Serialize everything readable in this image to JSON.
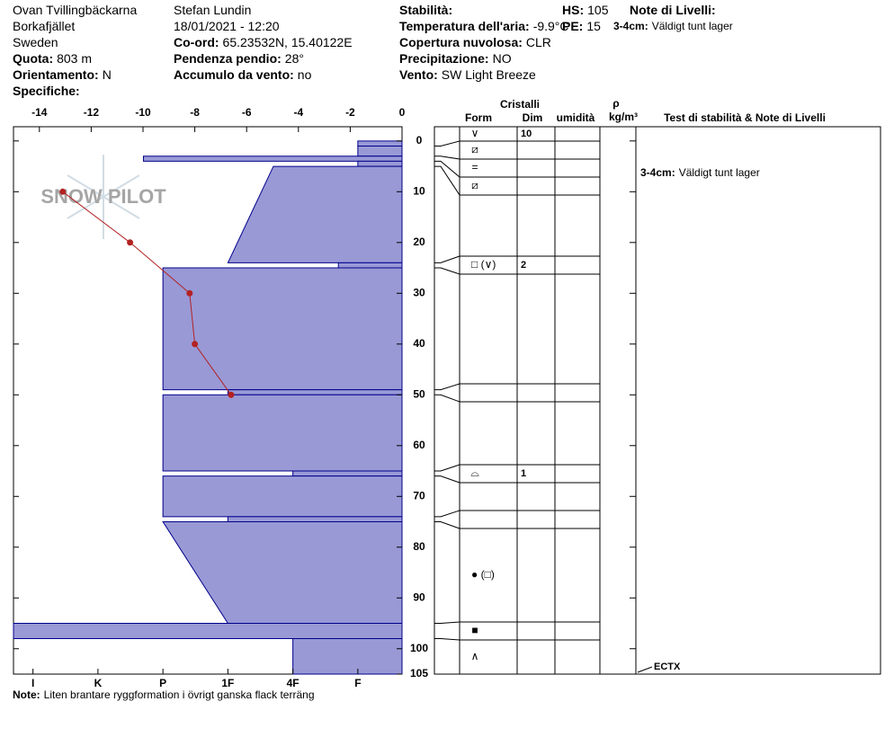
{
  "header": {
    "fields": [
      {
        "value": "Ovan Tvillingbäckarna"
      },
      {
        "value": "Borkafjället"
      },
      {
        "value": "Sweden"
      },
      {
        "label": "Quota:",
        "value": "803 m"
      },
      {
        "label": "Orientamento:",
        "value": "N"
      },
      {
        "label": "Specifiche:"
      },
      {
        "value": "Stefan Lundin"
      },
      {
        "value": "18/01/2021 - 12:20"
      },
      {
        "label": "Co-ord:",
        "value": "65.23532N, 15.40122E"
      },
      {
        "label": "Pendenza pendio:",
        "value": "28°"
      },
      {
        "label": "Accumulo da vento:",
        "value": "no"
      },
      {
        "label": "Stabilità:"
      },
      {
        "label": "Temperatura dell'aria:",
        "value": "-9.9°C"
      },
      {
        "label": "Copertura nuvolosa:",
        "value": "CLR"
      },
      {
        "label": "Precipitazione:",
        "value": "NO"
      },
      {
        "label": "Vento:",
        "value": "SW Light Breeze"
      },
      {
        "label": "HS:",
        "value": "105"
      },
      {
        "label": "PE:",
        "value": "15"
      },
      {
        "label": "Note di Livelli:"
      },
      {
        "label": "3-4cm:",
        "value": "Väldigt tunt lager"
      }
    ]
  },
  "watermark": "SNOW PILOT",
  "chart_data": {
    "type": "snowprofile",
    "ylim": [
      -2.8,
      105
    ],
    "yticks": [
      0,
      10,
      20,
      30,
      40,
      50,
      60,
      70,
      80,
      90,
      100,
      105
    ],
    "xlim": [
      -15,
      0
    ],
    "xticks": [
      -14,
      -12,
      -10,
      -8,
      -6,
      -4,
      -2,
      0
    ],
    "hardness_lim": [
      6.3,
      0.32
    ],
    "hardness_ticks": [
      {
        "value": 6,
        "label": "I"
      },
      {
        "value": 5,
        "label": "K"
      },
      {
        "value": 4,
        "label": "P"
      },
      {
        "value": 3,
        "label": "1F"
      },
      {
        "value": 2,
        "label": "4F"
      },
      {
        "value": 1,
        "label": "F"
      }
    ],
    "layer_color": "#9999d6",
    "layers": [
      {
        "top": 0,
        "bottom": 1,
        "hardness": 1,
        "form": "∨",
        "size": 10
      },
      {
        "top": 1,
        "bottom": 3,
        "hardness": 1,
        "form": "⧄"
      },
      {
        "top": 3,
        "bottom": 4,
        "hardness": 4.3,
        "form": "="
      },
      {
        "top": 4,
        "bottom": 5,
        "hardness": 1,
        "form": "⧄"
      },
      {
        "top": 5,
        "bottom": 24,
        "hardness": 2.3,
        "hardness_bottom": 3
      },
      {
        "top": 24,
        "bottom": 25,
        "hardness": 1.3,
        "form": "□ (∨)",
        "size": 2
      },
      {
        "top": 25,
        "bottom": 49,
        "hardness": 4
      },
      {
        "top": 49,
        "bottom": 50,
        "hardness": 3
      },
      {
        "top": 50,
        "bottom": 65,
        "hardness": 4
      },
      {
        "top": 65,
        "bottom": 66,
        "hardness": 2,
        "form": "⌓",
        "size": 1
      },
      {
        "top": 66,
        "bottom": 74,
        "hardness": 4
      },
      {
        "top": 74,
        "bottom": 75,
        "hardness": 3
      },
      {
        "top": 75,
        "bottom": 95,
        "hardness": 4,
        "hardness_bottom": 3,
        "form": "● (□)"
      },
      {
        "top": 95,
        "bottom": 98,
        "hardness": 6.3,
        "form": "■"
      },
      {
        "top": 98,
        "bottom": 105,
        "hardness": 2,
        "form": "∧"
      }
    ],
    "temperature": {
      "depths": [
        10,
        20,
        30,
        40,
        50
      ],
      "values": [
        -13.1,
        -10.5,
        -8.2,
        -8.0,
        -6.6
      ],
      "color": "#b22222"
    },
    "columns": {
      "crystals": "Cristalli",
      "form": "Form",
      "size": "Dim",
      "moisture": "umidità",
      "density": "ρ",
      "density_unit": "kg/m³",
      "tests": "Test di stabilità & Note di Livelli"
    },
    "layer_note": {
      "label": "3-4cm:",
      "value": "Väldigt tunt lager"
    },
    "stability_test": {
      "label": "ECTX",
      "depth": 105
    },
    "note": {
      "label": "Note:",
      "value": "Liten brantare ryggformation i övrigt ganska flack terräng"
    }
  }
}
